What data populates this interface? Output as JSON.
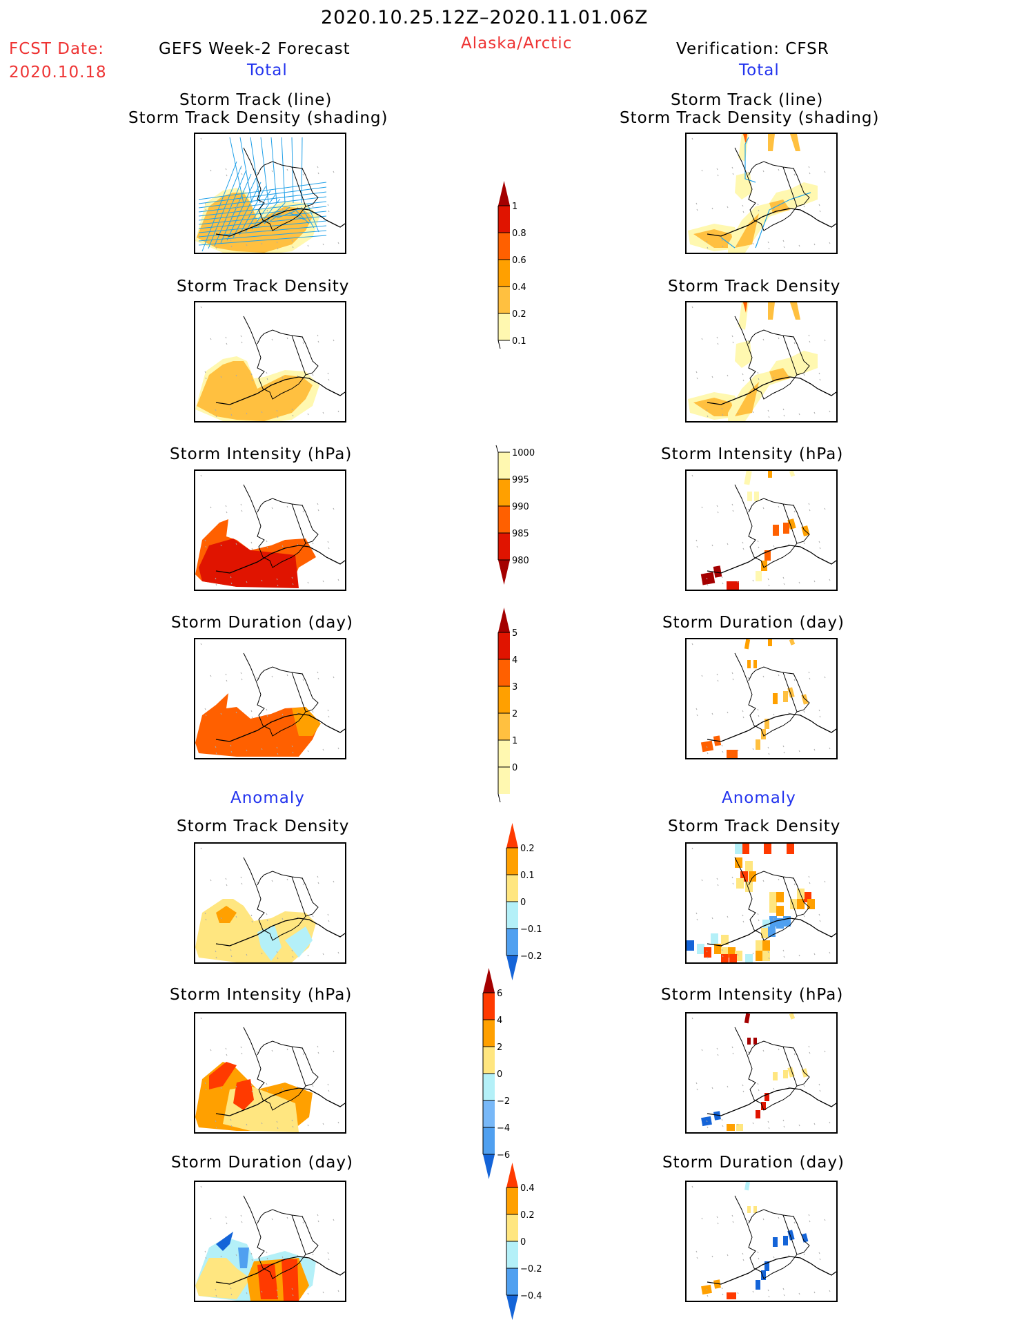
{
  "header": {
    "period": "2020.10.25.12Z–2020.11.01.06Z",
    "fcst_label": "FCST Date:",
    "fcst_date": "2020.10.18",
    "region": "Alaska/Arctic",
    "left_title": "GEFS Week-2 Forecast",
    "right_title": "Verification: CFSR",
    "total_label": "Total",
    "anomaly_label": "Anomaly"
  },
  "colors": {
    "dark_red": "#a40000",
    "red": "#e01400",
    "red_orange": "#ff6000",
    "orange": "#ffa000",
    "light_orange": "#ffc040",
    "pale_yellow": "#fff8b0",
    "anom_red": "#ff3a00",
    "anom_orange": "#ffa000",
    "anom_yellow": "#ffe680",
    "anom_lightblue": "#b4f0f8",
    "anom_midblue": "#78b8f8",
    "anom_blue": "#50a0f0",
    "anom_darkblue": "#1464d8",
    "track_line": "#20a0e8"
  },
  "chart_data": [
    {
      "type": "heatmap",
      "title": "Storm Track (line) Storm Track Density (shading)",
      "subtitle_line1": "Storm Track (line)",
      "subtitle_line2": "Storm Track Density (shading)",
      "column": "GEFS Week-2 Forecast",
      "section": "Total"
    },
    {
      "type": "heatmap",
      "title": "Storm Track Density",
      "column": "GEFS Week-2 Forecast",
      "section": "Total"
    },
    {
      "type": "heatmap",
      "title": "Storm Intensity (hPa)",
      "column": "GEFS Week-2 Forecast",
      "section": "Total"
    },
    {
      "type": "heatmap",
      "title": "Storm Duration (day)",
      "column": "GEFS Week-2 Forecast",
      "section": "Total"
    },
    {
      "type": "heatmap",
      "title": "Storm Track Density",
      "column": "GEFS Week-2 Forecast",
      "section": "Anomaly"
    },
    {
      "type": "heatmap",
      "title": "Storm Intensity (hPa)",
      "column": "GEFS Week-2 Forecast",
      "section": "Anomaly"
    },
    {
      "type": "heatmap",
      "title": "Storm Duration (day)",
      "column": "GEFS Week-2 Forecast",
      "section": "Anomaly"
    },
    {
      "type": "heatmap",
      "title": "Storm Track (line) Storm Track Density (shading)",
      "subtitle_line1": "Storm Track (line)",
      "subtitle_line2": "Storm Track Density (shading)",
      "column": "Verification: CFSR",
      "section": "Total"
    },
    {
      "type": "heatmap",
      "title": "Storm Track Density",
      "column": "Verification: CFSR",
      "section": "Total"
    },
    {
      "type": "heatmap",
      "title": "Storm Intensity (hPa)",
      "column": "Verification: CFSR",
      "section": "Total"
    },
    {
      "type": "heatmap",
      "title": "Storm Duration (day)",
      "column": "Verification: CFSR",
      "section": "Total"
    },
    {
      "type": "heatmap",
      "title": "Storm Track Density",
      "column": "Verification: CFSR",
      "section": "Anomaly"
    },
    {
      "type": "heatmap",
      "title": "Storm Intensity (hPa)",
      "column": "Verification: CFSR",
      "section": "Anomaly"
    },
    {
      "type": "heatmap",
      "title": "Storm Duration (day)",
      "column": "Verification: CFSR",
      "section": "Anomaly"
    }
  ],
  "titles": {
    "track_line": "Storm Track (line)",
    "track_density_shading": "Storm Track Density (shading)",
    "track_density": "Storm Track Density",
    "intensity": "Storm Intensity (hPa)",
    "duration": "Storm Duration (day)"
  },
  "colorbars": {
    "density": {
      "labels": [
        "1",
        "0.8",
        "0.6",
        "0.4",
        "0.2",
        "0.1"
      ]
    },
    "intensity": {
      "labels": [
        "1000",
        "995",
        "990",
        "985",
        "980"
      ]
    },
    "duration": {
      "labels": [
        "5",
        "4",
        "3",
        "2",
        "1",
        "0"
      ]
    },
    "density_anom": {
      "labels": [
        "0.2",
        "0.1",
        "0",
        "−0.1",
        "−0.2"
      ]
    },
    "intensity_anom": {
      "labels": [
        "6",
        "4",
        "2",
        "0",
        "−2",
        "−4",
        "−6"
      ]
    },
    "duration_anom": {
      "labels": [
        "0.4",
        "0.2",
        "0",
        "−0.2",
        "−0.4"
      ]
    }
  }
}
